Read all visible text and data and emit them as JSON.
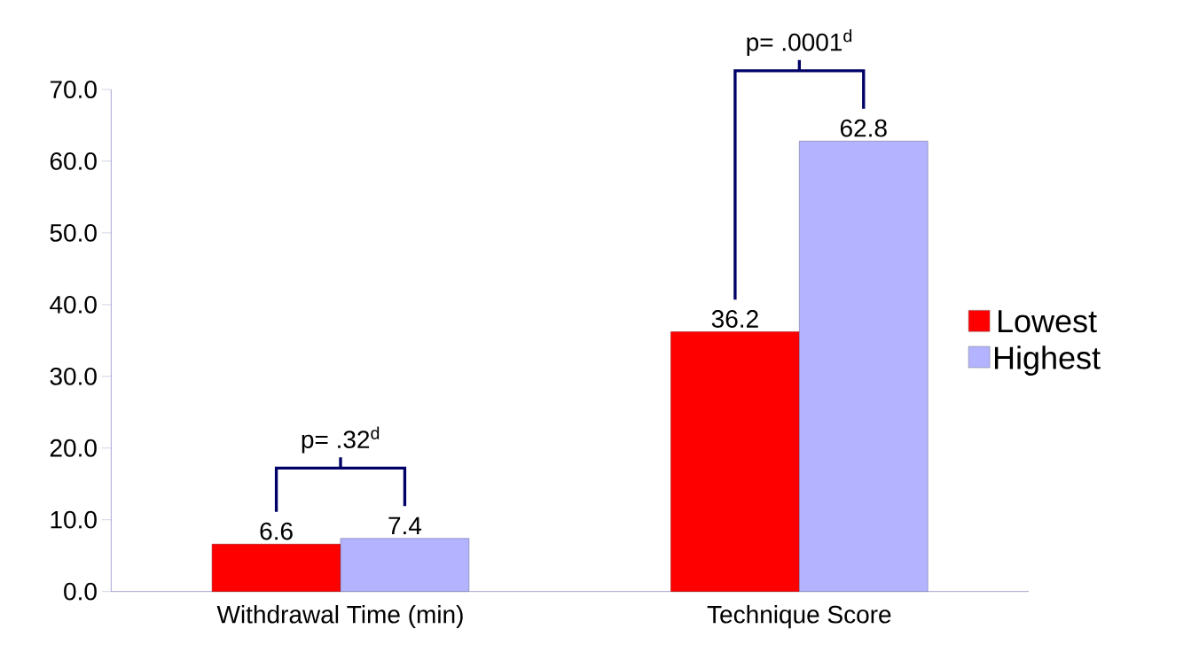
{
  "chart_data": {
    "type": "bar",
    "categories": [
      "Withdrawal Time (min)",
      "Technique Score"
    ],
    "series": [
      {
        "name": "Lowest",
        "color": "#ff0000",
        "values": [
          6.6,
          36.2
        ]
      },
      {
        "name": "Highest",
        "color": "#b3b3ff",
        "values": [
          7.4,
          62.8
        ]
      }
    ],
    "ylim": [
      0,
      70
    ],
    "yticks": [
      {
        "value": 0,
        "label": "0.0"
      },
      {
        "value": 10,
        "label": "10.0"
      },
      {
        "value": 20,
        "label": "20.0"
      },
      {
        "value": 30,
        "label": "30.0"
      },
      {
        "value": 40,
        "label": "40.0"
      },
      {
        "value": 50,
        "label": "50.0"
      },
      {
        "value": 60,
        "label": "60.0"
      },
      {
        "value": 70,
        "label": "70.0"
      }
    ],
    "data_labels": true,
    "legend": "right",
    "annotations": [
      "p= .32$^{d}$",
      "p= .0001$^{d}$"
    ]
  }
}
